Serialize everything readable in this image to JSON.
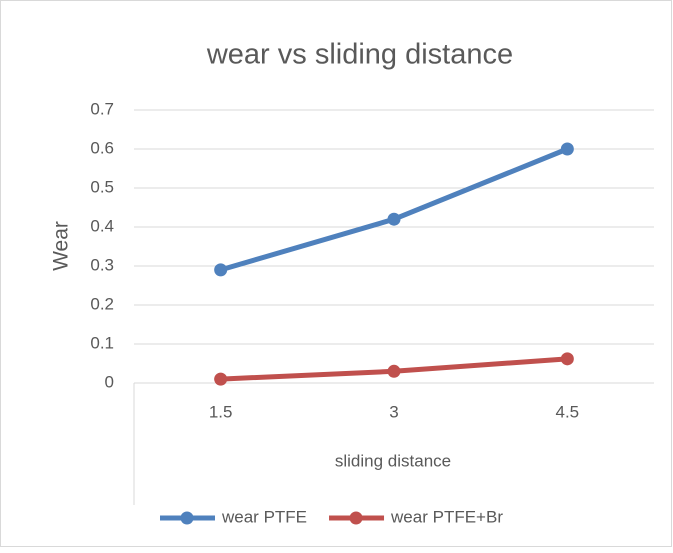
{
  "chart_data": {
    "type": "line",
    "title": "wear vs sliding distance",
    "x_label": "sliding distance",
    "y_label": "Wear",
    "categories": [
      "1.5",
      "3",
      "4.5"
    ],
    "series": [
      {
        "name": "wear PTFE",
        "color": "#4f81bd",
        "values": [
          0.29,
          0.42,
          0.6
        ]
      },
      {
        "name": "wear PTFE+Br",
        "color": "#c0504d",
        "values": [
          0.01,
          0.03,
          0.062
        ]
      }
    ],
    "ylim": [
      0,
      0.7
    ],
    "yticks": [
      0,
      0.1,
      0.2,
      0.3,
      0.4,
      0.5,
      0.6,
      0.7
    ],
    "grid": true,
    "legend": "bottom"
  }
}
